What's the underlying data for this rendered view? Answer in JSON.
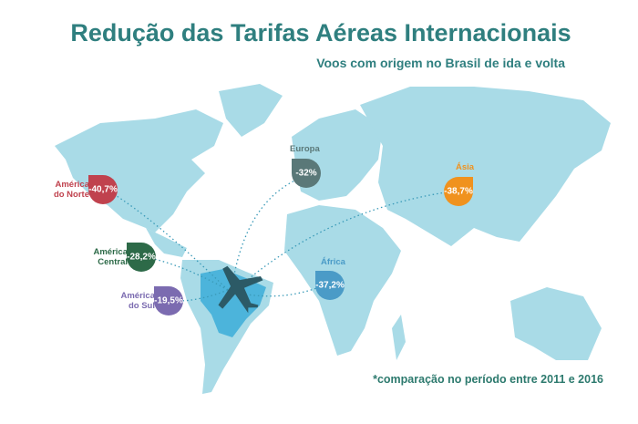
{
  "title": "Redução das Tarifas Aéreas Internacionais",
  "subtitle": "Voos com origem no Brasil de ida e volta",
  "regions": [
    {
      "name": "América do Norte",
      "value": "-40,7%"
    },
    {
      "name": "América Central",
      "value": "-28,2%"
    },
    {
      "name": "América do Sul",
      "value": "-19,5%"
    },
    {
      "name": "Europa",
      "value": "-32%"
    },
    {
      "name": "Ásia",
      "value": "-38,7%"
    },
    {
      "name": "África",
      "value": "-37,2%"
    }
  ],
  "footnote": "*comparação no período entre 2011 e 2016"
}
